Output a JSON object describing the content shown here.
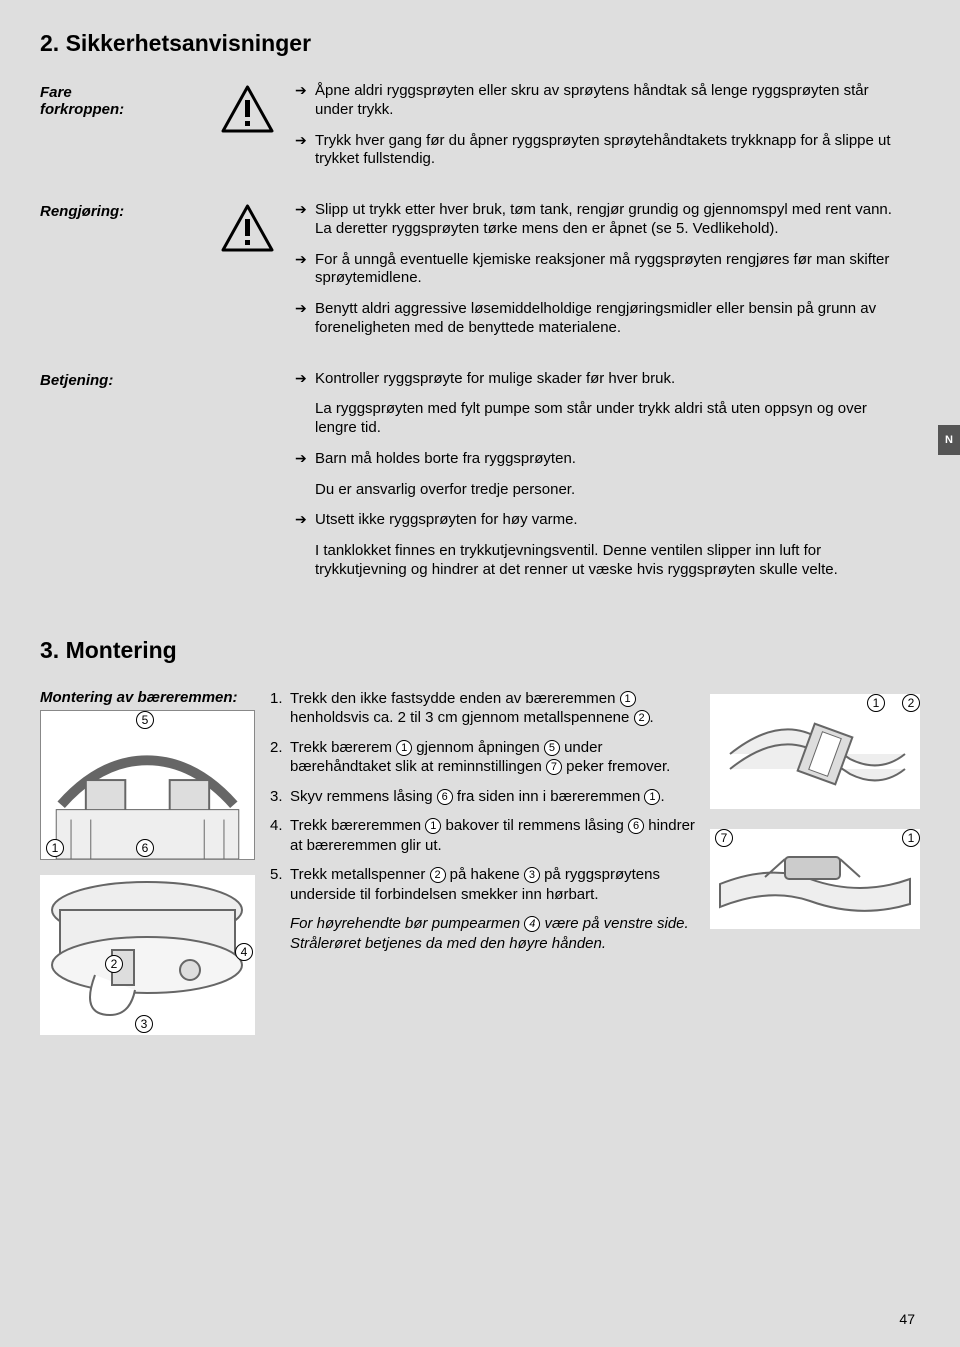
{
  "page_number": "47",
  "side_tab": "N",
  "section2": {
    "title": "2. Sikkerhetsanvisninger",
    "rows": [
      {
        "label": "Fare\nforkroppen:",
        "has_icon": true,
        "paras": [
          {
            "type": "arrow",
            "text": "Åpne aldri ryggsprøyten eller skru av sprøytens håndtak så lenge ryggsprøyten står under trykk."
          },
          {
            "type": "arrow",
            "text": "Trykk hver gang før du åpner ryggsprøyten sprøytehånd­takets trykknapp for å slippe ut trykket fullstendig."
          }
        ]
      },
      {
        "label": "Rengjøring:",
        "has_icon": true,
        "paras": [
          {
            "type": "arrow",
            "text": "Slipp ut trykk etter hver bruk, tøm tank, rengjør grundig og gjennomspyl med rent vann. La deretter ryggsprøyten tørke mens den er åpnet (se 5. Vedlikehold)."
          },
          {
            "type": "arrow",
            "text": "For å unngå eventuelle kjemiske reaksjoner må ryggsprøyten rengjøres før man skifter sprøytemidlene."
          },
          {
            "type": "arrow",
            "text": "Benytt aldri aggressive løsemiddelholdige rengjøringsmidler eller bensin på grunn av foreneligheten med de benyttede materialene."
          }
        ]
      },
      {
        "label": "Betjening:",
        "has_icon": false,
        "paras": [
          {
            "type": "arrow",
            "text": "Kontroller ryggsprøyte for mulige skader før hver bruk."
          },
          {
            "type": "plain",
            "text": "La ryggsprøyten med fylt pumpe som står under trykk aldri stå uten oppsyn og over lengre tid."
          },
          {
            "type": "arrow",
            "text": "Barn må holdes borte fra ryggsprøyten."
          },
          {
            "type": "plain",
            "text": "Du er ansvarlig overfor tredje personer."
          },
          {
            "type": "arrow",
            "text": "Utsett ikke ryggsprøyten for høy varme."
          },
          {
            "type": "plain",
            "text": "I tanklokket finnes en trykkutjevningsventil. Denne ventilen slipper inn luft for trykkutjevning og hindrer at det renner ut væske hvis ryggsprøyten skulle velte."
          }
        ]
      }
    ]
  },
  "section3": {
    "title": "3. Montering",
    "sub_label": "Montering av bæreremmen:",
    "steps": [
      {
        "n": "1.",
        "html": "Trekk den ikke fastsydde enden av bæreremmen <c>1</c> henholdsvis ca. 2 til 3 cm gjennom metallspennene <c>2</c>."
      },
      {
        "n": "2.",
        "html": "Trekk bærerem <c>1</c> gjennom åpningen <c>5</c> under bærehåndtaket slik at reminnstillingen <c>7</c> peker fremover."
      },
      {
        "n": "3.",
        "html": "Skyv remmens låsing <c>6</c> fra siden inn i bæreremmen <c>1</c>."
      },
      {
        "n": "4.",
        "html": "Trekk bæreremmen <c>1</c> bakover til remmens låsing <c>6</c> hindrer at bære­remmen glir ut."
      },
      {
        "n": "5.",
        "html": "Trekk metallspenner <c>2</c> på hakene <c>3</c> på ryggsprøytens underside til forbindelsen smekker inn hørbart."
      }
    ],
    "note_html": "For høyrehendte bør pumpearmen <c>4</c> være på venstre side. Strålerøret betjenes da med den høyre hånden.",
    "left_illus": {
      "top": {
        "callouts": {
          "5": "5",
          "1": "1",
          "6": "6"
        }
      },
      "bottom": {
        "callouts": {
          "2": "2",
          "3": "3",
          "4": "4"
        }
      }
    },
    "right_illus": {
      "top": {
        "callouts": {
          "1": "1",
          "2": "2"
        }
      },
      "bottom": {
        "callouts": {
          "7": "7",
          "1": "1"
        }
      }
    }
  }
}
